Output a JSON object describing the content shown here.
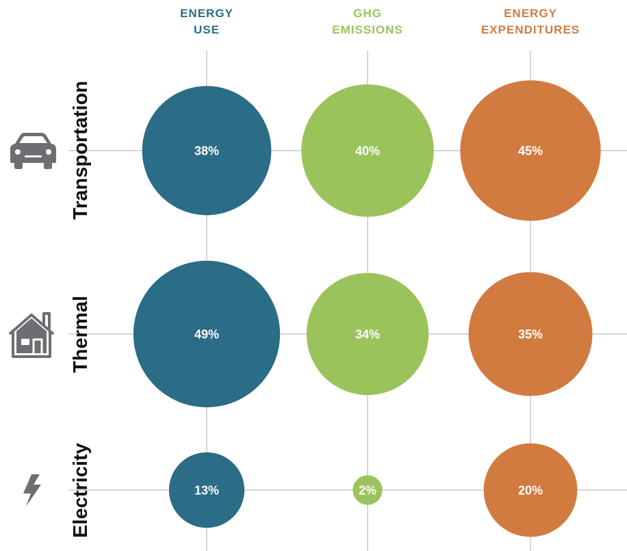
{
  "chart_data": {
    "type": "bubble-matrix",
    "columns": [
      {
        "line1": "ENERGY",
        "line2": "USE",
        "color": "#2b6c87"
      },
      {
        "line1": "GHG",
        "line2": "EMISSIONS",
        "color": "#9bc35b"
      },
      {
        "line1": "ENERGY",
        "line2": "EXPENDITURES",
        "color": "#d17b40"
      }
    ],
    "rows": [
      {
        "label": "Transportation",
        "icon": "car-icon",
        "values": [
          38,
          40,
          45
        ]
      },
      {
        "label": "Thermal",
        "icon": "house-icon",
        "values": [
          49,
          34,
          35
        ]
      },
      {
        "label": "Electricity",
        "icon": "lightning-icon",
        "values": [
          13,
          2,
          20
        ]
      }
    ],
    "value_suffix": "%",
    "colors": {
      "grid": "#c9c9c9",
      "icon": "#6d6e71",
      "label": "#111111",
      "value_text": "#ffffff"
    }
  }
}
